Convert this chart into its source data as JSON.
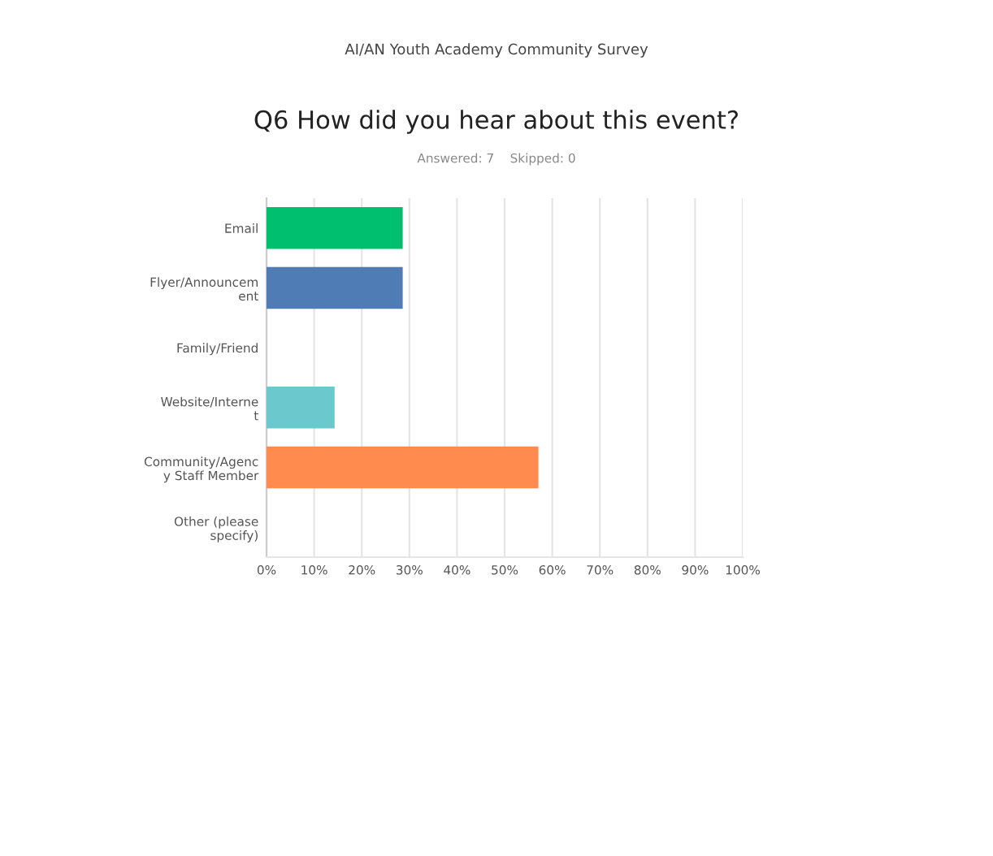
{
  "chart_data": {
    "type": "bar",
    "orientation": "horizontal",
    "title": "Q6 How did you hear about this event?",
    "subtitle": "AI/AN Youth Academy Community Survey",
    "annotations": [
      "Answered: 7    Skipped: 0"
    ],
    "categories": [
      "Email",
      "Flyer/Announcem\nent",
      "Family/Friend",
      "Website/Interne\nt",
      "Community/Agenc\ny Staff Member",
      "Other (please\nspecify)"
    ],
    "values": [
      28.6,
      28.6,
      0,
      14.3,
      57.1,
      0
    ],
    "colors": [
      "#00bf6f",
      "#507cb6",
      "#f9be00",
      "#6bc8cd",
      "#ff8b4f",
      "#7d5e90"
    ],
    "xlim": [
      0,
      100
    ],
    "xticks": [
      {
        "value": 0,
        "label": "0%"
      },
      {
        "value": 10,
        "label": "10%"
      },
      {
        "value": 20,
        "label": "20%"
      },
      {
        "value": 30,
        "label": "30%"
      },
      {
        "value": 40,
        "label": "40%"
      },
      {
        "value": 50,
        "label": "50%"
      },
      {
        "value": 60,
        "label": "60%"
      },
      {
        "value": 70,
        "label": "70%"
      },
      {
        "value": 80,
        "label": "80%"
      },
      {
        "value": 90,
        "label": "90%"
      },
      {
        "value": 100,
        "label": "100%"
      }
    ],
    "grid": "x"
  }
}
